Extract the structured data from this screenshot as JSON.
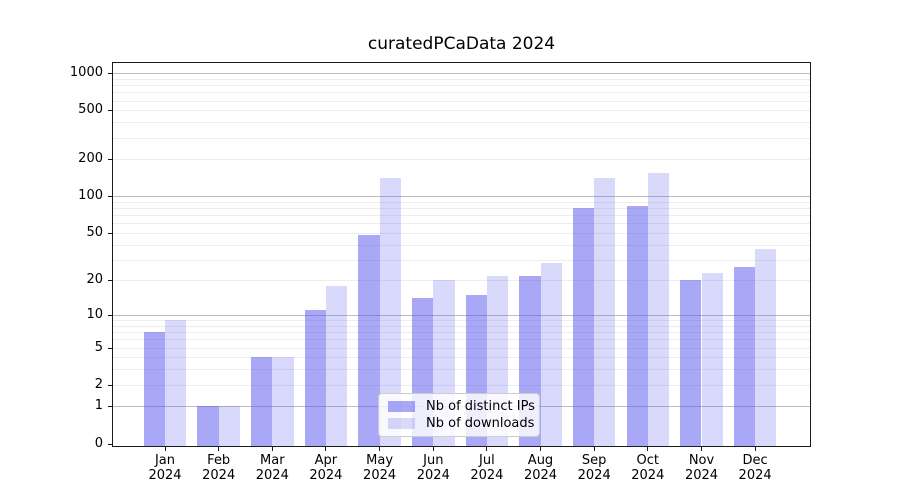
{
  "chart_data": {
    "type": "bar",
    "title": "curatedPCaData 2024",
    "categories": [
      "Jan",
      "Feb",
      "Mar",
      "Apr",
      "May",
      "Jun",
      "Jul",
      "Aug",
      "Sep",
      "Oct",
      "Nov",
      "Dec"
    ],
    "x_tick_year": "2024",
    "series": [
      {
        "name": "Nb of distinct IPs",
        "key": "distinct-ips",
        "color": "rgba(81,81,238,0.5)",
        "values": [
          7,
          1,
          4,
          11,
          48,
          14,
          15,
          22,
          80,
          83,
          20,
          26
        ]
      },
      {
        "name": "Nb of downloads",
        "key": "downloads",
        "color": "rgba(81,81,238,0.22)",
        "values": [
          9,
          1,
          4,
          18,
          140,
          20,
          22,
          28,
          140,
          155,
          23,
          37
        ]
      }
    ],
    "y_ticks": [
      0,
      1,
      2,
      5,
      10,
      20,
      50,
      100,
      200,
      500,
      1000
    ],
    "y_scale": "log10(1+x)",
    "ylim": [
      0,
      1200
    ],
    "grid": {
      "major_lines": [
        1,
        10,
        100,
        1000
      ],
      "minor_multipliers_per_decade": [
        2,
        3,
        4,
        5,
        6,
        7,
        8,
        9
      ]
    },
    "legend_position": "lower center inside plot"
  }
}
